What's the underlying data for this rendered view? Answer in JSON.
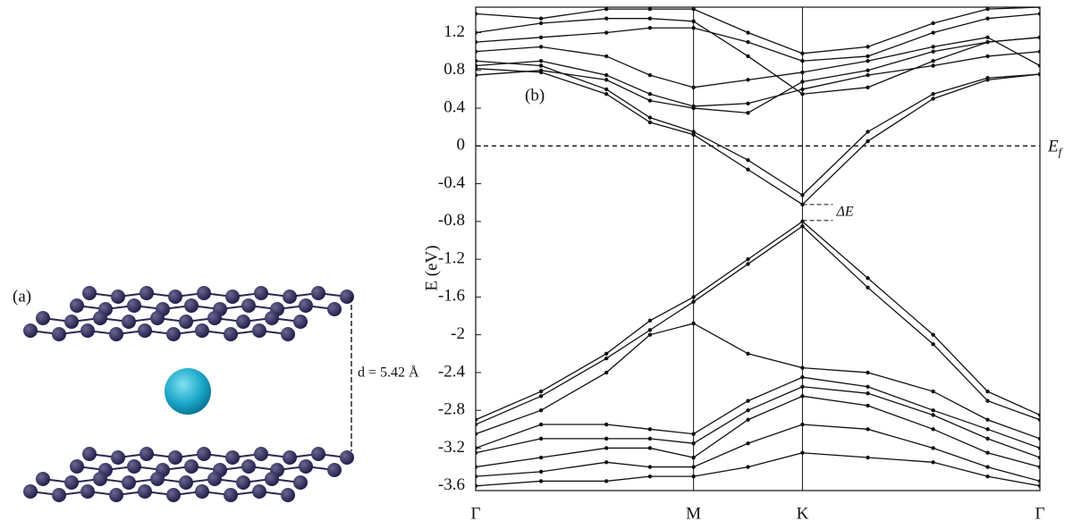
{
  "panel_a": {
    "label": "(a)",
    "distance_label": "d = 5.42 Å"
  },
  "chart_data": {
    "type": "line",
    "panel_label": "(b)",
    "y_label": "E (eV)",
    "x": [
      0,
      0.3,
      0.6,
      0.8,
      1,
      1.25,
      1.5,
      1.8,
      2.1,
      2.35,
      2.59
    ],
    "xlim": [
      0,
      2.59
    ],
    "xticks": [
      {
        "value": 0,
        "label": "Γ"
      },
      {
        "value": 1,
        "label": "M"
      },
      {
        "value": 1.5,
        "label": "K"
      },
      {
        "value": 2.59,
        "label": "Γ"
      }
    ],
    "ylim": [
      -3.65,
      1.47
    ],
    "yticks": [
      1.2,
      0.8,
      0.4,
      0,
      -0.4,
      -0.8,
      -1.2,
      -1.6,
      -2.0,
      -2.4,
      -2.8,
      -3.2,
      -3.6
    ],
    "color": "#111111",
    "markers": true,
    "reference_line": {
      "value": 0,
      "label": "E",
      "subscript": "f"
    },
    "gap_annotation": {
      "label": "ΔE",
      "upper": -0.62,
      "lower": -0.79
    },
    "series": [
      {
        "values": [
          0.9,
          0.85,
          0.6,
          0.3,
          0.15,
          -0.15,
          -0.52,
          0.15,
          0.55,
          0.72,
          0.76
        ]
      },
      {
        "values": [
          0.82,
          0.78,
          0.55,
          0.25,
          0.12,
          -0.25,
          -0.62,
          0.05,
          0.5,
          0.7,
          0.76
        ]
      },
      {
        "values": [
          -2.9,
          -2.6,
          -2.2,
          -1.85,
          -1.6,
          -1.2,
          -0.8,
          -1.4,
          -2.0,
          -2.6,
          -2.85
        ]
      },
      {
        "values": [
          -2.95,
          -2.65,
          -2.25,
          -1.95,
          -1.65,
          -1.25,
          -0.85,
          -1.5,
          -2.1,
          -2.7,
          -2.9
        ]
      },
      {
        "values": [
          -3.05,
          -2.8,
          -2.4,
          -2.0,
          -1.88,
          -2.2,
          -2.35,
          -2.4,
          -2.6,
          -2.9,
          -3.1
        ]
      },
      {
        "values": [
          -3.2,
          -2.95,
          -2.95,
          -3.0,
          -3.05,
          -2.7,
          -2.45,
          -2.55,
          -2.8,
          -3.0,
          -3.2
        ]
      },
      {
        "values": [
          -3.25,
          -3.1,
          -3.1,
          -3.1,
          -3.15,
          -2.8,
          -2.55,
          -2.62,
          -2.85,
          -3.1,
          -3.3
        ]
      },
      {
        "values": [
          -3.4,
          -3.3,
          -3.2,
          -3.2,
          -3.3,
          -2.9,
          -2.65,
          -2.75,
          -3.0,
          -3.25,
          -3.4
        ]
      },
      {
        "values": [
          -3.5,
          -3.45,
          -3.35,
          -3.4,
          -3.4,
          -3.15,
          -2.95,
          -3.0,
          -3.2,
          -3.4,
          -3.55
        ]
      },
      {
        "values": [
          -3.6,
          -3.55,
          -3.55,
          -3.5,
          -3.5,
          -3.4,
          -3.25,
          -3.3,
          -3.35,
          -3.5,
          -3.6
        ]
      },
      {
        "values": [
          1.2,
          1.3,
          1.35,
          1.35,
          1.32,
          0.95,
          0.55,
          0.62,
          0.9,
          1.1,
          1.15
        ]
      },
      {
        "values": [
          1.1,
          1.15,
          1.2,
          1.25,
          1.25,
          1.1,
          0.9,
          0.95,
          1.2,
          1.35,
          1.4
        ]
      },
      {
        "values": [
          0.85,
          0.9,
          0.75,
          0.55,
          0.42,
          0.45,
          0.6,
          0.75,
          0.85,
          0.95,
          1.0
        ]
      },
      {
        "values": [
          0.75,
          0.8,
          0.7,
          0.48,
          0.4,
          0.35,
          0.68,
          0.8,
          1.0,
          1.1,
          1.15
        ]
      },
      {
        "values": [
          1.4,
          1.35,
          1.45,
          1.45,
          1.45,
          1.2,
          0.98,
          1.05,
          1.3,
          1.45,
          1.47
        ]
      },
      {
        "values": [
          1.0,
          1.05,
          0.95,
          0.75,
          0.62,
          0.7,
          0.78,
          0.9,
          1.05,
          1.15,
          0.85
        ]
      }
    ]
  }
}
